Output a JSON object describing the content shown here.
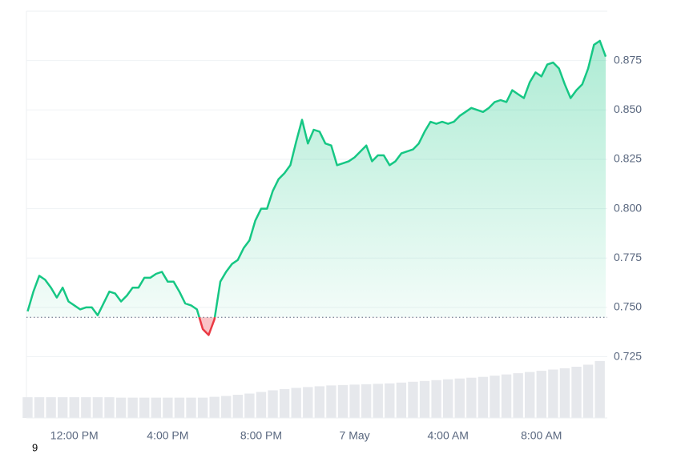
{
  "chart_data": {
    "type": "line",
    "x": [
      10,
      10.25,
      10.5,
      10.75,
      11,
      11.25,
      11.5,
      11.75,
      12,
      12.25,
      12.5,
      12.75,
      13,
      13.25,
      13.5,
      13.75,
      14,
      14.25,
      14.5,
      14.75,
      15,
      15.25,
      15.5,
      15.75,
      16,
      16.25,
      16.5,
      16.75,
      17,
      17.25,
      17.5,
      17.75,
      18,
      18.25,
      18.5,
      18.75,
      19,
      19.25,
      19.5,
      19.75,
      20,
      20.25,
      20.5,
      20.75,
      21,
      21.25,
      21.5,
      21.75,
      22,
      22.25,
      22.5,
      22.75,
      23,
      23.25,
      23.5,
      23.75,
      24,
      24.25,
      24.5,
      24.75,
      25,
      25.25,
      25.5,
      25.75,
      26,
      26.25,
      26.5,
      26.75,
      27,
      27.25,
      27.5,
      27.75,
      28,
      28.25,
      28.5,
      28.75,
      29,
      29.25,
      29.5,
      29.75,
      30,
      30.25,
      30.5,
      30.75,
      31,
      31.25,
      31.5,
      31.75,
      32,
      32.25,
      32.5,
      32.75,
      33,
      33.25,
      33.5,
      33.75,
      34,
      34.25,
      34.5,
      34.75
    ],
    "values": [
      0.748,
      0.758,
      0.766,
      0.764,
      0.76,
      0.755,
      0.76,
      0.753,
      0.751,
      0.749,
      0.75,
      0.75,
      0.746,
      0.752,
      0.758,
      0.757,
      0.753,
      0.756,
      0.76,
      0.76,
      0.765,
      0.765,
      0.767,
      0.768,
      0.763,
      0.763,
      0.758,
      0.752,
      0.751,
      0.749,
      0.739,
      0.736,
      0.744,
      0.763,
      0.768,
      0.772,
      0.774,
      0.78,
      0.784,
      0.794,
      0.8,
      0.8,
      0.809,
      0.815,
      0.818,
      0.822,
      0.834,
      0.845,
      0.833,
      0.84,
      0.839,
      0.833,
      0.832,
      0.822,
      0.823,
      0.824,
      0.826,
      0.829,
      0.832,
      0.824,
      0.827,
      0.827,
      0.822,
      0.824,
      0.828,
      0.829,
      0.83,
      0.833,
      0.839,
      0.844,
      0.843,
      0.844,
      0.843,
      0.844,
      0.847,
      0.849,
      0.851,
      0.85,
      0.849,
      0.851,
      0.854,
      0.855,
      0.854,
      0.86,
      0.858,
      0.856,
      0.864,
      0.869,
      0.867,
      0.873,
      0.874,
      0.871,
      0.863,
      0.856,
      0.86,
      0.863,
      0.871,
      0.883,
      0.885,
      0.877
    ],
    "color_up": "#16c784",
    "color_down": "#ea3943",
    "baseline": 0.745,
    "xlim": [
      9.95,
      34.82
    ],
    "xticks": [
      {
        "value": 12,
        "label": "12:00 PM"
      },
      {
        "value": 16,
        "label": "4:00 PM"
      },
      {
        "value": 20,
        "label": "8:00 PM"
      },
      {
        "value": 24,
        "label": "7 May"
      },
      {
        "value": 28,
        "label": "4:00 AM"
      },
      {
        "value": 32,
        "label": "8:00 AM"
      }
    ],
    "ylim": [
      0.694,
      0.9
    ],
    "yticks": [
      0.725,
      {
        "value": 0.75,
        "label": "0.750"
      },
      0.775,
      {
        "value": 0.8,
        "label": "0.800"
      },
      0.825,
      {
        "value": 0.85,
        "label": "0.850"
      },
      0.875
    ],
    "grid": true,
    "volume": {
      "x": [
        10,
        10.5,
        11,
        11.5,
        12,
        12.5,
        13,
        13.5,
        14,
        14.5,
        15,
        15.5,
        16,
        16.5,
        17,
        17.5,
        18,
        18.5,
        19,
        19.5,
        20,
        20.5,
        21,
        21.5,
        22,
        22.5,
        23,
        23.5,
        24,
        24.5,
        25,
        25.5,
        26,
        26.5,
        27,
        27.5,
        28,
        28.5,
        29,
        29.5,
        30,
        30.5,
        31,
        31.5,
        32,
        32.5,
        33,
        33.5,
        34,
        34.5
      ],
      "values": [
        5.1,
        5.1,
        5.1,
        5.1,
        5.1,
        5.1,
        5.1,
        5.1,
        5.0,
        5.0,
        5.0,
        5.0,
        5.0,
        5.0,
        5.0,
        5.0,
        5.2,
        5.4,
        5.7,
        6.0,
        6.4,
        6.8,
        7.1,
        7.4,
        7.6,
        7.8,
        8.0,
        8.1,
        8.2,
        8.3,
        8.4,
        8.5,
        8.7,
        8.9,
        9.1,
        9.3,
        9.5,
        9.7,
        9.9,
        10.1,
        10.4,
        10.7,
        11.0,
        11.3,
        11.6,
        11.9,
        12.2,
        12.6,
        13.1,
        14.0
      ],
      "color": "#e6e8ec",
      "axis": "y2"
    },
    "y2lim": [
      0,
      100
    ],
    "footnote": "9"
  }
}
